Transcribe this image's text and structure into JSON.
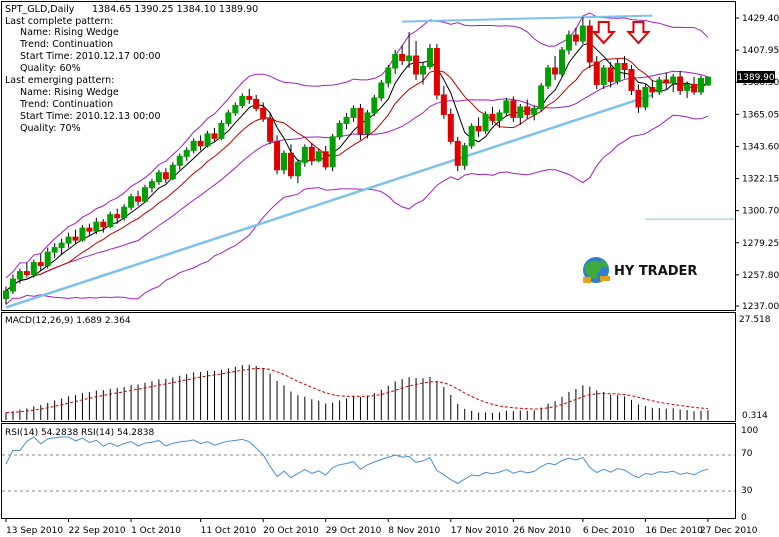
{
  "header": {
    "symbol_line": "SPT_GLD,Daily",
    "ohlc": "1384.65 1390.25 1384.10 1389.90"
  },
  "pattern_info": {
    "complete_title": "Last complete pattern:",
    "complete_lines": [
      "Name: Rising Wedge",
      "Trend: Continuation",
      "Start Time: 2010.12.17 00:00",
      "Quality: 60%"
    ],
    "emerging_title": "Last emerging pattern:",
    "emerging_lines": [
      "Name: Rising Wedge",
      "Trend: Continuation",
      "Start Time: 2010.12.13 00:00",
      "Quality: 70%"
    ]
  },
  "watermark": {
    "text": "HY TRADER",
    "icon": "globe-logo-icon"
  },
  "price_label": "1389.90",
  "macd_panel": {
    "title": "MACD(12,26,9) 1.689 2.364",
    "scale_top": "27.518",
    "scale_bottom": "0.314"
  },
  "rsi_panel": {
    "title": "RSI(14) 54.2838 RSI(14) 54.2838",
    "scale_labels": [
      "100",
      "70",
      "30",
      "0"
    ]
  },
  "colors": {
    "bull_candle": "#00a000",
    "bear_candle": "#e00000",
    "bollinger": "#a020c0",
    "moving_average": "#000000",
    "ma_red": "#c00000",
    "trendline": "#7ec0ee",
    "rsi_line": "#4a8fd8",
    "macd_signal": "#cc0000",
    "arrow": "#e00000"
  },
  "chart_data": [
    {
      "type": "candlestick",
      "panel": "price",
      "title": "SPT_GLD,Daily",
      "x_tick_labels": [
        "13 Sep 2010",
        "22 Sep 2010",
        "1 Oct 2010",
        "11 Oct 2010",
        "20 Oct 2010",
        "29 Oct 2010",
        "8 Nov 2010",
        "17 Nov 2010",
        "26 Nov 2010",
        "6 Dec 2010",
        "16 Dec 2010",
        "27 Dec 2010"
      ],
      "y_tick_labels": [
        "1429.40",
        "1407.95",
        "1386.50",
        "1365.05",
        "1343.60",
        "1322.15",
        "1300.70",
        "1279.25",
        "1257.80",
        "1237.00"
      ],
      "ylim": [
        1237.0,
        1429.4
      ],
      "last_price": 1389.9,
      "ohlc": [
        [
          1242,
          1250,
          1238,
          1247
        ],
        [
          1247,
          1258,
          1245,
          1255
        ],
        [
          1255,
          1262,
          1252,
          1260
        ],
        [
          1260,
          1266,
          1256,
          1258
        ],
        [
          1258,
          1268,
          1256,
          1266
        ],
        [
          1266,
          1272,
          1261,
          1264
        ],
        [
          1264,
          1276,
          1262,
          1273
        ],
        [
          1273,
          1279,
          1269,
          1276
        ],
        [
          1276,
          1282,
          1271,
          1279
        ],
        [
          1279,
          1286,
          1276,
          1283
        ],
        [
          1283,
          1288,
          1278,
          1281
        ],
        [
          1281,
          1291,
          1280,
          1289
        ],
        [
          1289,
          1292,
          1284,
          1287
        ],
        [
          1287,
          1296,
          1285,
          1293
        ],
        [
          1293,
          1295,
          1286,
          1290
        ],
        [
          1290,
          1300,
          1289,
          1298
        ],
        [
          1298,
          1302,
          1292,
          1296
        ],
        [
          1296,
          1305,
          1294,
          1303
        ],
        [
          1303,
          1312,
          1301,
          1310
        ],
        [
          1310,
          1314,
          1304,
          1307
        ],
        [
          1307,
          1318,
          1306,
          1316
        ],
        [
          1316,
          1322,
          1313,
          1320
        ],
        [
          1320,
          1328,
          1318,
          1326
        ],
        [
          1326,
          1329,
          1319,
          1322
        ],
        [
          1322,
          1333,
          1321,
          1331
        ],
        [
          1331,
          1339,
          1328,
          1337
        ],
        [
          1337,
          1343,
          1334,
          1341
        ],
        [
          1341,
          1349,
          1339,
          1347
        ],
        [
          1347,
          1351,
          1341,
          1344
        ],
        [
          1344,
          1354,
          1343,
          1352
        ],
        [
          1352,
          1356,
          1347,
          1349
        ],
        [
          1349,
          1361,
          1348,
          1359
        ],
        [
          1359,
          1368,
          1357,
          1366
        ],
        [
          1366,
          1373,
          1364,
          1371
        ],
        [
          1371,
          1379,
          1369,
          1377
        ],
        [
          1377,
          1382,
          1372,
          1375
        ],
        [
          1375,
          1378,
          1367,
          1369
        ],
        [
          1369,
          1373,
          1360,
          1362
        ],
        [
          1362,
          1366,
          1345,
          1347
        ],
        [
          1347,
          1351,
          1325,
          1328
        ],
        [
          1328,
          1341,
          1325,
          1339
        ],
        [
          1339,
          1345,
          1322,
          1324
        ],
        [
          1324,
          1335,
          1319,
          1333
        ],
        [
          1333,
          1345,
          1330,
          1343
        ],
        [
          1343,
          1346,
          1331,
          1334
        ],
        [
          1334,
          1342,
          1333,
          1340
        ],
        [
          1340,
          1344,
          1328,
          1330
        ],
        [
          1330,
          1352,
          1327,
          1350
        ],
        [
          1350,
          1361,
          1348,
          1359
        ],
        [
          1359,
          1366,
          1355,
          1363
        ],
        [
          1363,
          1371,
          1360,
          1369
        ],
        [
          1369,
          1372,
          1348,
          1352
        ],
        [
          1352,
          1368,
          1349,
          1366
        ],
        [
          1366,
          1378,
          1364,
          1376
        ],
        [
          1376,
          1388,
          1374,
          1386
        ],
        [
          1386,
          1398,
          1383,
          1396
        ],
        [
          1396,
          1408,
          1392,
          1405
        ],
        [
          1405,
          1411,
          1398,
          1401
        ],
        [
          1401,
          1420,
          1396,
          1404
        ],
        [
          1404,
          1414,
          1388,
          1392
        ],
        [
          1392,
          1400,
          1385,
          1397
        ],
        [
          1397,
          1412,
          1395,
          1409
        ],
        [
          1409,
          1412,
          1375,
          1378
        ],
        [
          1378,
          1384,
          1362,
          1365
        ],
        [
          1365,
          1369,
          1345,
          1347
        ],
        [
          1347,
          1350,
          1327,
          1331
        ],
        [
          1331,
          1346,
          1328,
          1344
        ],
        [
          1344,
          1359,
          1342,
          1357
        ],
        [
          1357,
          1363,
          1350,
          1354
        ],
        [
          1354,
          1367,
          1352,
          1365
        ],
        [
          1365,
          1370,
          1358,
          1361
        ],
        [
          1361,
          1368,
          1356,
          1366
        ],
        [
          1366,
          1376,
          1364,
          1374
        ],
        [
          1374,
          1377,
          1360,
          1363
        ],
        [
          1363,
          1372,
          1358,
          1370
        ],
        [
          1370,
          1375,
          1362,
          1365
        ],
        [
          1365,
          1371,
          1361,
          1369
        ],
        [
          1369,
          1386,
          1367,
          1384
        ],
        [
          1384,
          1398,
          1382,
          1396
        ],
        [
          1396,
          1404,
          1388,
          1392
        ],
        [
          1392,
          1410,
          1390,
          1408
        ],
        [
          1408,
          1421,
          1405,
          1418
        ],
        [
          1418,
          1423,
          1411,
          1414
        ],
        [
          1414,
          1430,
          1412,
          1424
        ],
        [
          1424,
          1428,
          1396,
          1400
        ],
        [
          1400,
          1404,
          1382,
          1385
        ],
        [
          1385,
          1398,
          1382,
          1396
        ],
        [
          1396,
          1400,
          1383,
          1387
        ],
        [
          1387,
          1402,
          1385,
          1399
        ],
        [
          1399,
          1404,
          1389,
          1395
        ],
        [
          1395,
          1398,
          1378,
          1381
        ],
        [
          1381,
          1385,
          1366,
          1370
        ],
        [
          1370,
          1385,
          1368,
          1383
        ],
        [
          1383,
          1388,
          1376,
          1380
        ],
        [
          1380,
          1390,
          1378,
          1388
        ],
        [
          1388,
          1393,
          1382,
          1386
        ],
        [
          1386,
          1392,
          1380,
          1390
        ],
        [
          1390,
          1394,
          1378,
          1381
        ],
        [
          1381,
          1387,
          1376,
          1385
        ],
        [
          1385,
          1390,
          1378,
          1380
        ],
        [
          1380,
          1391,
          1378,
          1389
        ],
        [
          1384.65,
          1390.25,
          1384.1,
          1389.9
        ]
      ],
      "overlays": {
        "bollinger_note": "Bollinger bands (upper/lower) and moving averages drawn from data",
        "trendline_lower": {
          "from_index": 0,
          "from_price": 1236,
          "to_index": 93,
          "to_price": 1378
        },
        "trendline_upper": {
          "from_index": 57,
          "from_price": 1427,
          "to_index": 93,
          "to_price": 1431
        },
        "down_arrows_at_index": [
          86,
          91
        ],
        "horizontal_level": {
          "from_index": 92,
          "price": 1295
        }
      }
    },
    {
      "type": "histogram",
      "panel": "macd",
      "title": "MACD(12,26,9) 1.689 2.364",
      "ylim": [
        0,
        27.518
      ],
      "y_tick_labels": [
        "27.518",
        "0.314"
      ],
      "series": [
        {
          "name": "MACD",
          "kind": "bars"
        },
        {
          "name": "Signal",
          "kind": "dashed-line"
        }
      ]
    },
    {
      "type": "line",
      "panel": "rsi",
      "title": "RSI(14) 54.2838 RSI(14) 54.2838",
      "ylim": [
        0,
        100
      ],
      "y_tick_labels": [
        "100",
        "70",
        "30",
        "0"
      ],
      "levels": [
        70,
        30
      ],
      "last_value": 54.2838,
      "series": [
        {
          "name": "RSI(14)"
        }
      ]
    }
  ]
}
